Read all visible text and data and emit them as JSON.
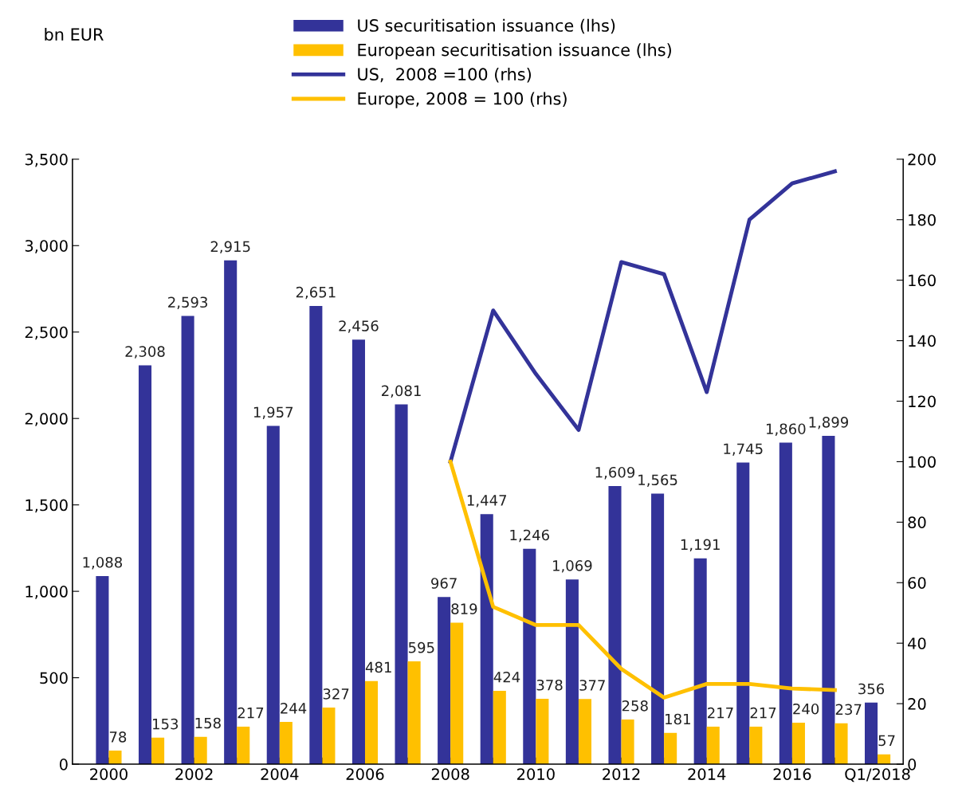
{
  "chart_data": {
    "type": "bar",
    "annotations": [
      "bn EUR"
    ],
    "categories": [
      "2000",
      null,
      "2002",
      null,
      "2004",
      null,
      "2006",
      null,
      "2008",
      null,
      "2010",
      null,
      "2012",
      null,
      "2014",
      null,
      "2016",
      null,
      "Q1/2018"
    ],
    "series": [
      {
        "name": "US securitisation issuance (lhs)",
        "color": "#333399",
        "values": [
          1088,
          2308,
          2593,
          2915,
          1957,
          2651,
          2456,
          2081,
          967,
          1447,
          1246,
          1069,
          1609,
          1565,
          1191,
          1745,
          1860,
          1899,
          356
        ],
        "value_labels": [
          "1,088",
          "2,308",
          "2,593",
          "2,915",
          "1,957",
          "2,651",
          "2,456",
          "2,081",
          "967",
          "1,447",
          "1,246",
          "1,069",
          "1,609",
          "1,565",
          "1,191",
          "1,745",
          "1,860",
          "1,899",
          "356"
        ]
      },
      {
        "name": "European securitisation issuance (lhs)",
        "color": "#ffc000",
        "values": [
          78,
          153,
          158,
          217,
          244,
          327,
          481,
          595,
          819,
          424,
          378,
          377,
          258,
          181,
          217,
          217,
          240,
          237,
          57
        ],
        "value_labels": [
          "78",
          "153",
          "158",
          "217",
          "244",
          "327",
          "481",
          "595",
          "819",
          "424",
          "378",
          "377",
          "258",
          "181",
          "217",
          "217",
          "240",
          "237",
          "57"
        ]
      },
      {
        "name": "US,  2008 =100 (rhs)",
        "type": "line",
        "axis": "y2",
        "color": "#333399",
        "values": [
          null,
          null,
          null,
          null,
          null,
          null,
          null,
          null,
          100,
          150,
          129,
          110.5,
          166,
          162,
          123,
          180,
          192,
          196,
          null
        ]
      },
      {
        "name": "Europe, 2008 = 100 (rhs)",
        "type": "line",
        "axis": "y2",
        "color": "#ffc000",
        "values": [
          null,
          null,
          null,
          null,
          null,
          null,
          null,
          null,
          100,
          52,
          46,
          46,
          31.5,
          22,
          26.5,
          26.5,
          25,
          24.5,
          null
        ]
      }
    ],
    "ylim": [
      0,
      3500
    ],
    "yticks": [
      0,
      500,
      {
        "value": 1000,
        "label": "1,000"
      },
      {
        "value": 1500,
        "label": "1,500"
      },
      {
        "value": 2000,
        "label": "2,000"
      },
      {
        "value": 2500,
        "label": "2,500"
      },
      {
        "value": 3000,
        "label": "3,000"
      },
      {
        "value": 3500,
        "label": "3,500"
      }
    ],
    "y2lim": [
      0,
      200
    ],
    "y2ticks": [
      0,
      20,
      40,
      60,
      80,
      100,
      120,
      140,
      160,
      180,
      200
    ],
    "grid": false,
    "legend": "top",
    "marker": "none",
    "line_style": "solid"
  }
}
